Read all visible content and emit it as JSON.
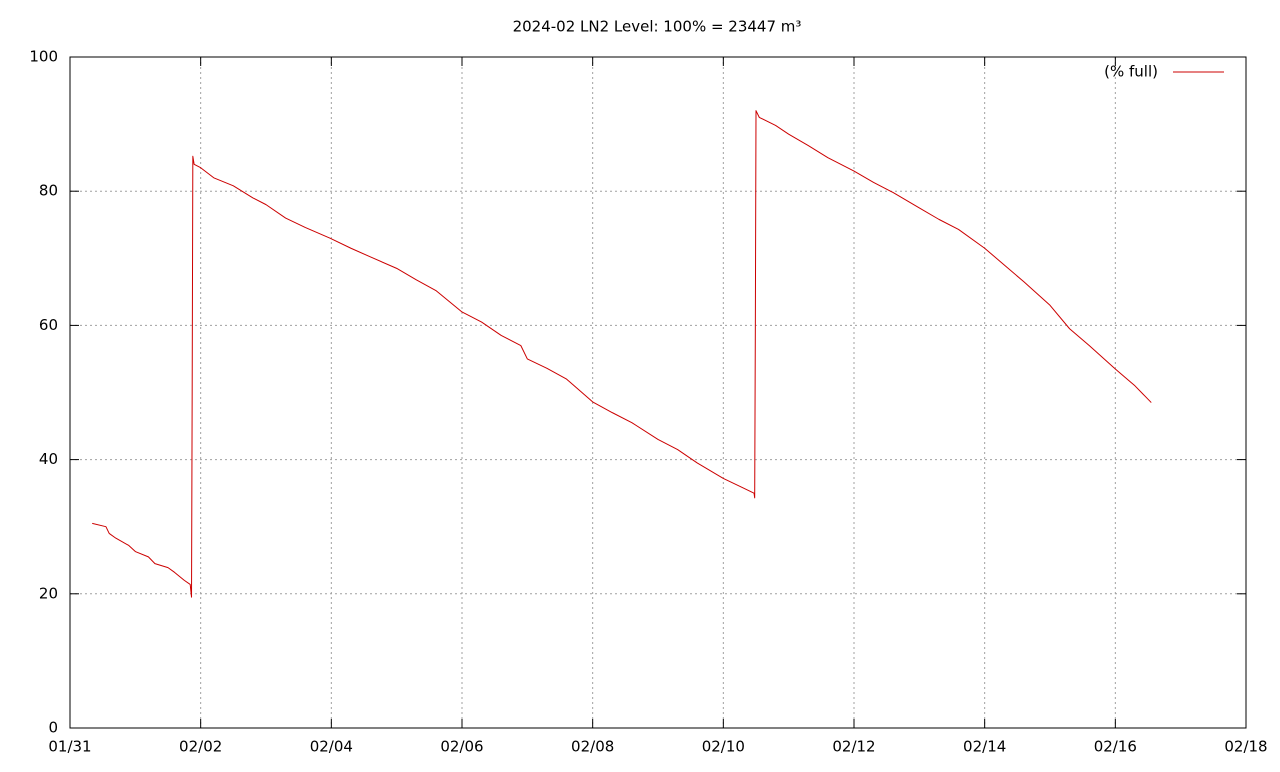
{
  "chart_data": {
    "type": "line",
    "title": "2024-02 LN2 Level: 100% = 23447 m³",
    "grid": true,
    "legend": "top-right",
    "xlim": [
      0,
      18
    ],
    "ylim": [
      0,
      100
    ],
    "xticks": [
      {
        "value": 0,
        "label": "01/31"
      },
      {
        "value": 2,
        "label": "02/02"
      },
      {
        "value": 4,
        "label": "02/04"
      },
      {
        "value": 6,
        "label": "02/06"
      },
      {
        "value": 8,
        "label": "02/08"
      },
      {
        "value": 10,
        "label": "02/10"
      },
      {
        "value": 12,
        "label": "02/12"
      },
      {
        "value": 14,
        "label": "02/14"
      },
      {
        "value": 16,
        "label": "02/16"
      },
      {
        "value": 18,
        "label": "02/18"
      }
    ],
    "yticks": [
      0,
      20,
      40,
      60,
      80,
      100
    ],
    "x": [
      0.34,
      0.55,
      0.6,
      0.7,
      0.9,
      1.0,
      1.2,
      1.3,
      1.5,
      1.6,
      1.75,
      1.84,
      1.86,
      1.87,
      1.88,
      1.9,
      2.0,
      2.2,
      2.5,
      2.8,
      3.0,
      3.3,
      3.6,
      3.98,
      4.3,
      4.6,
      5.0,
      5.3,
      5.6,
      6.0,
      6.3,
      6.6,
      6.9,
      7.0,
      7.3,
      7.6,
      8.0,
      8.3,
      8.6,
      9.0,
      9.3,
      9.6,
      10.0,
      10.3,
      10.47,
      10.48,
      10.49,
      10.5,
      10.55,
      10.8,
      11.0,
      11.3,
      11.6,
      12.0,
      12.3,
      12.6,
      13.0,
      13.3,
      13.6,
      14.0,
      14.3,
      14.6,
      15.0,
      15.3,
      15.6,
      16.0,
      16.3,
      16.55
    ],
    "series": [
      {
        "name": "(% full)",
        "color": "#cc0000",
        "values": [
          30.5,
          30.0,
          29.0,
          28.3,
          27.2,
          26.3,
          25.5,
          24.5,
          23.9,
          23.2,
          22.0,
          21.4,
          19.5,
          50,
          85.2,
          84.0,
          83.5,
          82.0,
          80.8,
          79.0,
          78.0,
          76.0,
          74.6,
          73.0,
          71.5,
          70.2,
          68.5,
          66.8,
          65.2,
          62.0,
          60.5,
          58.5,
          57.0,
          55.0,
          53.6,
          52.0,
          48.6,
          47.0,
          45.5,
          43.0,
          41.5,
          39.5,
          37.2,
          35.8,
          35.0,
          34.3,
          60,
          92.0,
          91.0,
          89.8,
          88.5,
          86.8,
          85.0,
          83.0,
          81.3,
          79.8,
          77.5,
          75.8,
          74.3,
          71.5,
          69.0,
          66.5,
          63.0,
          59.5,
          57.0,
          53.5,
          51.0,
          48.5
        ]
      }
    ]
  }
}
